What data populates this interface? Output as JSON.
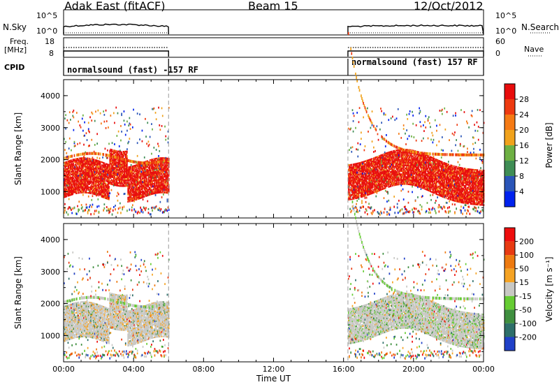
{
  "header": {
    "site": "Adak East (fitACF)",
    "beam": "Beam 15",
    "date": "12/Oct/2012"
  },
  "strip_panels": {
    "nsky_label": "N.Sky",
    "nsky_ticks": [
      "10^5",
      "10^0"
    ],
    "nsearch_label": "N.Search",
    "nsearch_ticks": [
      "10^5",
      "10^0"
    ],
    "freq_label_1": "Freq.",
    "freq_label_2": "[MHz]",
    "freq_ticks": [
      "18",
      "8"
    ],
    "nave_label": "Nave",
    "nave_ticks": [
      "60",
      "0"
    ],
    "cpid_label": "CPID",
    "cpid_segments": [
      {
        "text": "normalsound (fast) -157 RF",
        "start": "00:00",
        "end": "06:00"
      },
      {
        "text": "normalsound (fast) 157 RF",
        "start": "16:15",
        "end": "24:00"
      }
    ]
  },
  "chart_data": [
    {
      "type": "heatmap",
      "title": "",
      "xlabel": "",
      "ylabel": "Slant Range [km]",
      "yticks": [
        "1000",
        "2000",
        "3000",
        "4000"
      ],
      "ylim": [
        180,
        4500
      ],
      "xlim": [
        "00:00",
        "24:00"
      ],
      "data_intervals": [
        [
          "00:00",
          "06:00"
        ],
        [
          "16:15",
          "24:00"
        ]
      ],
      "colorbar": {
        "label": "Power [dB]",
        "ticks": [
          "4",
          "8",
          "12",
          "16",
          "20",
          "24",
          "28"
        ],
        "colors": [
          "#0022ee",
          "#2a55b8",
          "#3f8d55",
          "#6db043",
          "#f0a21c",
          "#f57a14",
          "#ee3a10",
          "#e80c0c"
        ]
      }
    },
    {
      "type": "heatmap",
      "title": "",
      "xlabel": "Time UT",
      "ylabel": "Slant Range [km]",
      "yticks": [
        "1000",
        "2000",
        "3000",
        "4000"
      ],
      "ylim": [
        180,
        4500
      ],
      "xlim": [
        "00:00",
        "24:00"
      ],
      "xticks": [
        "00:00",
        "04:00",
        "08:00",
        "12:00",
        "16:00",
        "20:00",
        "00:00"
      ],
      "data_intervals": [
        [
          "00:00",
          "06:00"
        ],
        [
          "16:15",
          "24:00"
        ]
      ],
      "colorbar": {
        "label": "Velocity [m s⁻¹]",
        "ticks": [
          "200",
          "100",
          "50",
          "15",
          "-15",
          "-50",
          "-100",
          "-200"
        ],
        "colors": [
          "#2040c8",
          "#2e6f6a",
          "#3f8f3f",
          "#66cc33",
          "#c8c8c4",
          "#f5a323",
          "#ee7a10",
          "#e83a12",
          "#ee0d0d"
        ]
      }
    }
  ],
  "colors": {
    "frame": "#000000",
    "separator": "#9a9a9a",
    "ground_scatter": "#c2c2be"
  }
}
